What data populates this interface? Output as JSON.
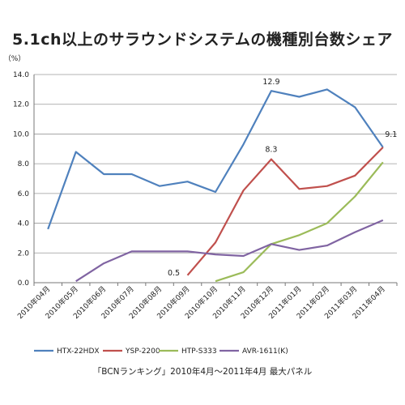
{
  "chart_data": {
    "type": "line",
    "title": "5.1ch以上のサラウンドシステムの機種別台数シェア",
    "ylabel": "（%）",
    "ylim": [
      0,
      14
    ],
    "yticks": [
      "0.0",
      "2.0",
      "4.0",
      "6.0",
      "8.0",
      "10.0",
      "12.0",
      "14.0"
    ],
    "grid": true,
    "legend_position": "bottom",
    "categories": [
      "2010年04月",
      "2010年05月",
      "2010年06月",
      "2010年07月",
      "2010年08月",
      "2010年09月",
      "2010年10月",
      "2010年11月",
      "2010年12月",
      "2011年01月",
      "2011年02月",
      "2011年03月",
      "2011年04月"
    ],
    "series": [
      {
        "name": "HTX-22HDX",
        "color": "#4f81bd",
        "values": [
          3.6,
          8.8,
          7.3,
          7.3,
          6.5,
          6.8,
          6.1,
          9.3,
          12.9,
          12.5,
          13.0,
          11.8,
          9.1
        ]
      },
      {
        "name": "YSP-2200",
        "color": "#c0504d",
        "values": [
          null,
          null,
          null,
          null,
          null,
          0.5,
          2.7,
          6.2,
          8.3,
          6.3,
          6.5,
          7.2,
          9.1
        ]
      },
      {
        "name": "HTP-S333",
        "color": "#9bbb59",
        "values": [
          null,
          null,
          null,
          null,
          null,
          null,
          0.1,
          0.7,
          2.6,
          3.2,
          4.0,
          5.8,
          8.1
        ]
      },
      {
        "name": "AVR-1611(K)",
        "color": "#8064a2",
        "values": [
          null,
          0.1,
          1.3,
          2.1,
          2.1,
          2.1,
          1.9,
          1.8,
          2.6,
          2.2,
          2.5,
          3.4,
          4.2
        ]
      }
    ],
    "annotations": [
      {
        "text": "12.9",
        "category": "2010年12月",
        "value": 12.9
      },
      {
        "text": "8.3",
        "category": "2010年12月",
        "value": 8.3
      },
      {
        "text": "0.5",
        "category": "2010年09月",
        "value": 0.5
      },
      {
        "text": "9.1",
        "category": "2011年04月",
        "value": 9.1
      }
    ]
  },
  "source_note": "「BCNランキング」2010年4月～2011年4月 最大パネル"
}
